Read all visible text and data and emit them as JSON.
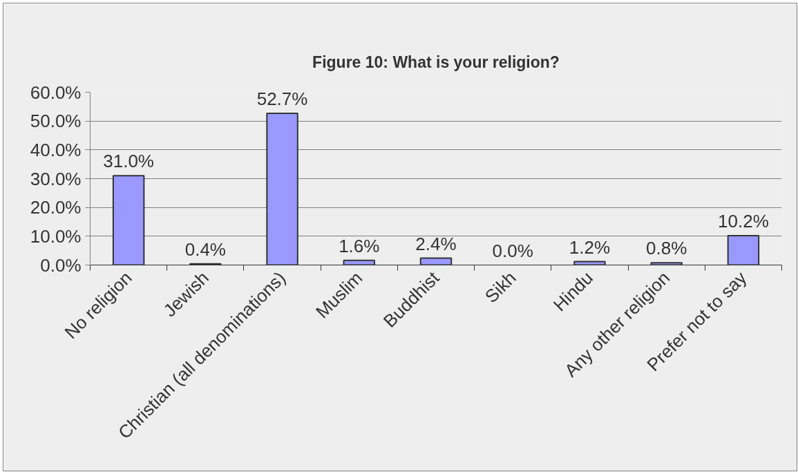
{
  "chart_data": {
    "type": "bar",
    "title": "Figure 10: What is your religion?",
    "categories": [
      "No religion",
      "Jewish",
      "Christian (all denominations)",
      "Muslim",
      "Buddhist",
      "Sikh",
      "Hindu",
      "Any other religion",
      "Prefer not to say"
    ],
    "values": [
      31.0,
      0.4,
      52.7,
      1.6,
      2.4,
      0.0,
      1.2,
      0.8,
      10.2
    ],
    "value_labels": [
      "31.0%",
      "0.4%",
      "52.7%",
      "1.6%",
      "2.4%",
      "0.0%",
      "1.2%",
      "0.8%",
      "10.2%"
    ],
    "color": "#9999ff",
    "ylim": [
      0,
      60
    ],
    "yticks": [
      {
        "value": 0,
        "label": "0.0%"
      },
      {
        "value": 10,
        "label": "10.0%"
      },
      {
        "value": 20,
        "label": "20.0%"
      },
      {
        "value": 30,
        "label": "30.0%"
      },
      {
        "value": 40,
        "label": "40.0%"
      },
      {
        "value": 50,
        "label": "50.0%"
      },
      {
        "value": 60,
        "label": "60.0%"
      }
    ],
    "grid": "y"
  }
}
